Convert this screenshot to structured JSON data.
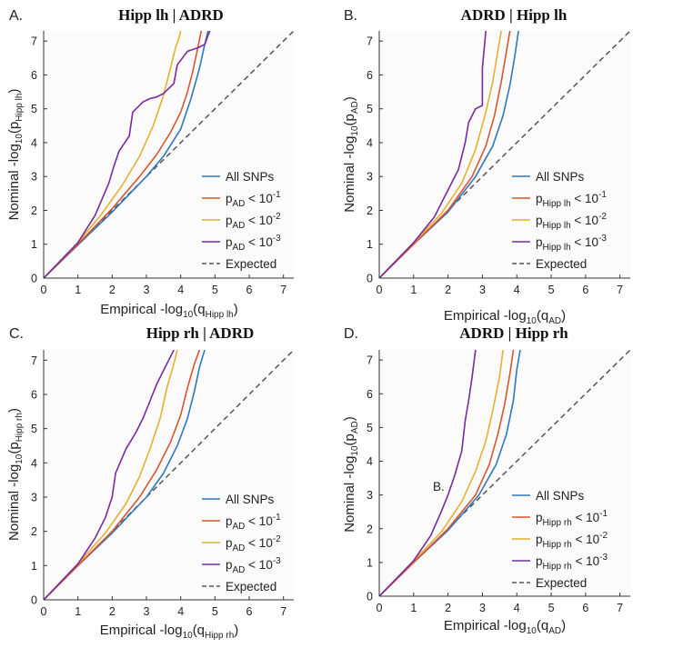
{
  "figure": {
    "colors": {
      "all": "#2f78c0",
      "p1": "#d9552f",
      "p2": "#e6b030",
      "p3": "#7a2aa0",
      "expected": "#555555"
    },
    "stray_label": "B."
  },
  "chart_data": [
    {
      "type": "line",
      "panel": "A.",
      "title": "Hipp lh | ADRD",
      "xlabel": {
        "main": "Empirical -log",
        "sub10": "10",
        "paren": "(q",
        "sub": "Hipp lh",
        "close": ")"
      },
      "ylabel": {
        "main": "Nominal -log",
        "sub10": "10",
        "paren": "(p",
        "sub": "Hipp lh",
        "close": ")"
      },
      "xlim": [
        0,
        7.3
      ],
      "ylim": [
        0,
        7.3
      ],
      "xticks": [
        0,
        1,
        2,
        3,
        4,
        5,
        6,
        7
      ],
      "yticks": [
        0,
        1,
        2,
        3,
        4,
        5,
        6,
        7
      ],
      "legend": [
        {
          "key": "all",
          "text": "All SNPs"
        },
        {
          "key": "p1",
          "pre": "p",
          "sub": "AD",
          "mid": " < 10",
          "sup": "-1"
        },
        {
          "key": "p2",
          "pre": "p",
          "sub": "AD",
          "mid": " < 10",
          "sup": "-2"
        },
        {
          "key": "p3",
          "pre": "p",
          "sub": "AD",
          "mid": " < 10",
          "sup": "-3"
        },
        {
          "key": "expected",
          "text": "Expected"
        }
      ],
      "series": [
        {
          "key": "all",
          "name": "All SNPs",
          "x": [
            0,
            1,
            2,
            3,
            3.5,
            4,
            4.3,
            4.55,
            4.7,
            4.8
          ],
          "y": [
            0,
            0.98,
            1.95,
            3.0,
            3.6,
            4.4,
            5.3,
            6.2,
            6.9,
            7.3
          ]
        },
        {
          "key": "p1",
          "name": "pAD < 10^-1",
          "x": [
            0,
            1,
            2,
            2.8,
            3.3,
            3.7,
            4.0,
            4.2,
            4.35,
            4.5,
            4.6
          ],
          "y": [
            0,
            1.0,
            2.05,
            3.0,
            3.65,
            4.3,
            4.9,
            5.5,
            6.1,
            6.8,
            7.3
          ]
        },
        {
          "key": "p2",
          "name": "pAD < 10^-2",
          "x": [
            0,
            1,
            1.7,
            2.3,
            2.8,
            3.2,
            3.5,
            3.7,
            3.85,
            3.95,
            4.0
          ],
          "y": [
            0,
            1.05,
            1.9,
            2.75,
            3.6,
            4.5,
            5.4,
            6.2,
            6.8,
            7.1,
            7.3
          ]
        },
        {
          "key": "p3",
          "name": "pAD < 10^-3",
          "x": [
            0,
            1,
            1.5,
            1.9,
            2.05,
            2.2,
            2.5,
            2.6,
            2.9,
            3.1,
            3.3,
            3.5,
            3.8,
            3.9,
            4.2,
            4.5,
            4.7,
            4.85
          ],
          "y": [
            0,
            1.05,
            1.85,
            2.8,
            3.3,
            3.75,
            4.2,
            4.9,
            5.2,
            5.3,
            5.35,
            5.45,
            5.75,
            6.3,
            6.7,
            6.8,
            6.9,
            7.3
          ]
        },
        {
          "key": "expected",
          "name": "Expected",
          "x": [
            0,
            7.3
          ],
          "y": [
            0,
            7.3
          ]
        }
      ]
    },
    {
      "type": "line",
      "panel": "B.",
      "title": "ADRD  | Hipp lh",
      "xlabel": {
        "main": "Empirical -log",
        "sub10": "10",
        "paren": "(q",
        "sub": "AD",
        "close": ")"
      },
      "ylabel": {
        "main": "Nominal -log",
        "sub10": "10",
        "paren": "(p",
        "sub": "AD",
        "close": ")"
      },
      "xlim": [
        0,
        7.3
      ],
      "ylim": [
        0,
        7.3
      ],
      "xticks": [
        0,
        1,
        2,
        3,
        4,
        5,
        6,
        7
      ],
      "yticks": [
        0,
        1,
        2,
        3,
        4,
        5,
        6,
        7
      ],
      "legend": [
        {
          "key": "all",
          "text": "All SNPs"
        },
        {
          "key": "p1",
          "pre": "p",
          "sub": "Hipp lh",
          "mid": " < 10",
          "sup": "-1"
        },
        {
          "key": "p2",
          "pre": "p",
          "sub": "Hipp lh",
          "mid": " < 10",
          "sup": "-2"
        },
        {
          "key": "p3",
          "pre": "p",
          "sub": "Hipp lh",
          "mid": " < 10",
          "sup": "-3"
        },
        {
          "key": "expected",
          "text": "Expected"
        }
      ],
      "series": [
        {
          "key": "all",
          "name": "All SNPs",
          "x": [
            0,
            1,
            2,
            2.8,
            3.3,
            3.6,
            3.8,
            3.95,
            4.05
          ],
          "y": [
            0,
            1.0,
            1.95,
            3.0,
            3.9,
            4.8,
            5.7,
            6.6,
            7.3
          ]
        },
        {
          "key": "p1",
          "name": "pHipp lh < 10^-1",
          "x": [
            0,
            1,
            2,
            2.7,
            3.1,
            3.35,
            3.55,
            3.7,
            3.8
          ],
          "y": [
            0,
            1.0,
            2.0,
            3.0,
            3.9,
            4.8,
            5.8,
            6.7,
            7.3
          ]
        },
        {
          "key": "p2",
          "name": "pHipp lh < 10^-2",
          "x": [
            0,
            1,
            1.8,
            2.4,
            2.8,
            3.1,
            3.3,
            3.45,
            3.55
          ],
          "y": [
            0,
            1.05,
            1.9,
            2.8,
            3.8,
            4.9,
            5.8,
            6.7,
            7.3
          ]
        },
        {
          "key": "p3",
          "name": "pHipp lh < 10^-3",
          "x": [
            0,
            1,
            1.6,
            2.0,
            2.3,
            2.5,
            2.6,
            2.8,
            3.0,
            3.0,
            3.1
          ],
          "y": [
            0,
            1.05,
            1.8,
            2.6,
            3.2,
            4.0,
            4.6,
            5.0,
            5.1,
            6.2,
            7.3
          ]
        },
        {
          "key": "expected",
          "name": "Expected",
          "x": [
            0,
            7.3
          ],
          "y": [
            0,
            7.3
          ]
        }
      ]
    },
    {
      "type": "line",
      "panel": "C.",
      "title": "Hipp rh | ADRD",
      "xlabel": {
        "main": "Empirical -log",
        "sub10": "10",
        "paren": "(q",
        "sub": "Hipp rh",
        "close": ")"
      },
      "ylabel": {
        "main": "Nominal -log",
        "sub10": "10",
        "paren": "(p",
        "sub": "Hipp rh",
        "close": ")"
      },
      "xlim": [
        0,
        7.3
      ],
      "ylim": [
        0,
        7.3
      ],
      "xticks": [
        0,
        1,
        2,
        3,
        4,
        5,
        6,
        7
      ],
      "yticks": [
        0,
        1,
        2,
        3,
        4,
        5,
        6,
        7
      ],
      "legend": [
        {
          "key": "all",
          "text": "All SNPs"
        },
        {
          "key": "p1",
          "pre": "p",
          "sub": "AD",
          "mid": " < 10",
          "sup": "-1"
        },
        {
          "key": "p2",
          "pre": "p",
          "sub": "AD",
          "mid": " < 10",
          "sup": "-2"
        },
        {
          "key": "p3",
          "pre": "p",
          "sub": "AD",
          "mid": " < 10",
          "sup": "-3"
        },
        {
          "key": "expected",
          "text": "Expected"
        }
      ],
      "series": [
        {
          "key": "all",
          "name": "All SNPs",
          "x": [
            0,
            1,
            2,
            3,
            3.5,
            3.9,
            4.2,
            4.4,
            4.55,
            4.7
          ],
          "y": [
            0,
            1.0,
            1.95,
            3.0,
            3.7,
            4.5,
            5.3,
            6.1,
            6.8,
            7.3
          ]
        },
        {
          "key": "p1",
          "name": "pAD < 10^-1",
          "x": [
            0,
            1,
            2,
            2.8,
            3.3,
            3.7,
            4.0,
            4.2,
            4.4,
            4.55
          ],
          "y": [
            0,
            1.0,
            2.0,
            3.0,
            3.8,
            4.6,
            5.4,
            6.2,
            6.9,
            7.3
          ]
        },
        {
          "key": "p2",
          "name": "pAD < 10^-2",
          "x": [
            0,
            1,
            1.8,
            2.4,
            2.8,
            3.1,
            3.4,
            3.6,
            3.8,
            3.9
          ],
          "y": [
            0,
            1.05,
            1.95,
            2.8,
            3.6,
            4.4,
            5.3,
            6.2,
            6.9,
            7.3
          ]
        },
        {
          "key": "p3",
          "name": "pAD < 10^-3",
          "x": [
            0,
            1,
            1.5,
            1.8,
            2.0,
            2.1,
            2.4,
            2.7,
            2.9,
            3.1,
            3.3,
            3.5,
            3.65,
            3.8
          ],
          "y": [
            0,
            1.05,
            1.8,
            2.4,
            3.0,
            3.7,
            4.4,
            4.9,
            5.3,
            5.8,
            6.3,
            6.7,
            7.0,
            7.3
          ]
        },
        {
          "key": "expected",
          "name": "Expected",
          "x": [
            0,
            7.3
          ],
          "y": [
            0,
            7.3
          ]
        }
      ]
    },
    {
      "type": "line",
      "panel": "D.",
      "title": "ADRD  | Hipp rh",
      "xlabel": {
        "main": "Empirical -log",
        "sub10": "10",
        "paren": "(q",
        "sub": "AD",
        "close": ")"
      },
      "ylabel": {
        "main": "Nominal -log",
        "sub10": "10",
        "paren": "(p",
        "sub": "AD",
        "close": ")"
      },
      "xlim": [
        0,
        7.3
      ],
      "ylim": [
        0,
        7.3
      ],
      "xticks": [
        0,
        1,
        2,
        3,
        4,
        5,
        6,
        7
      ],
      "yticks": [
        0,
        1,
        2,
        3,
        4,
        5,
        6,
        7
      ],
      "legend": [
        {
          "key": "all",
          "text": "All SNPs"
        },
        {
          "key": "p1",
          "pre": "p",
          "sub": "Hipp rh",
          "mid": " < 10",
          "sup": "-1"
        },
        {
          "key": "p2",
          "pre": "p",
          "sub": "Hipp rh",
          "mid": " < 10",
          "sup": "-2"
        },
        {
          "key": "p3",
          "pre": "p",
          "sub": "Hipp rh",
          "mid": " < 10",
          "sup": "-3"
        },
        {
          "key": "expected",
          "text": "Expected"
        }
      ],
      "series": [
        {
          "key": "all",
          "name": "All SNPs",
          "x": [
            0,
            1,
            2,
            2.9,
            3.4,
            3.7,
            3.9,
            4.0,
            4.1
          ],
          "y": [
            0,
            1.0,
            1.95,
            3.0,
            3.9,
            4.8,
            5.8,
            6.7,
            7.3
          ]
        },
        {
          "key": "p1",
          "name": "pHipp rh < 10^-1",
          "x": [
            0,
            1,
            2,
            2.8,
            3.2,
            3.45,
            3.65,
            3.8,
            3.9
          ],
          "y": [
            0,
            1.0,
            2.0,
            3.0,
            3.9,
            4.8,
            5.7,
            6.6,
            7.3
          ]
        },
        {
          "key": "p2",
          "name": "pHipp rh < 10^-2",
          "x": [
            0,
            1,
            1.8,
            2.4,
            2.8,
            3.1,
            3.3,
            3.5,
            3.6
          ],
          "y": [
            0,
            1.05,
            1.9,
            2.8,
            3.7,
            4.6,
            5.5,
            6.5,
            7.3
          ]
        },
        {
          "key": "p3",
          "name": "pHipp rh < 10^-3",
          "x": [
            0,
            1,
            1.5,
            1.8,
            2.0,
            2.2,
            2.4,
            2.5,
            2.6,
            2.7,
            2.8
          ],
          "y": [
            0,
            1.05,
            1.8,
            2.5,
            3.0,
            3.6,
            4.3,
            5.2,
            5.8,
            6.5,
            7.3
          ]
        },
        {
          "key": "expected",
          "name": "Expected",
          "x": [
            0,
            7.3
          ],
          "y": [
            0,
            7.3
          ]
        }
      ]
    }
  ]
}
